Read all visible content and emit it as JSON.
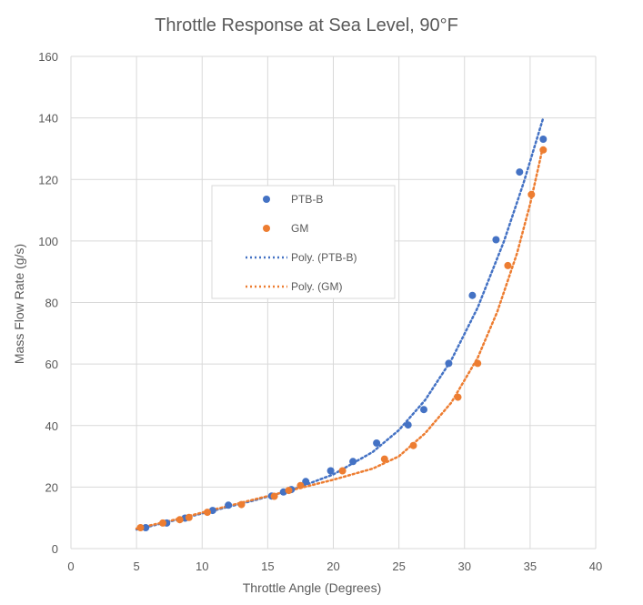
{
  "chart_data": {
    "type": "scatter",
    "title": "Throttle Response at Sea Level, 90°F",
    "xlabel": "Throttle Angle (Degrees)",
    "ylabel": "Mass Flow Rate (g/s)",
    "xlim": [
      0,
      40
    ],
    "ylim": [
      0,
      160
    ],
    "x_ticks": [
      "0",
      "5",
      "10",
      "15",
      "20",
      "25",
      "30",
      "35",
      "40"
    ],
    "y_ticks": [
      "0",
      "20",
      "40",
      "60",
      "80",
      "100",
      "120",
      "140",
      "160"
    ],
    "grid": true,
    "legend_position": "center-left",
    "series": [
      {
        "name": "PTB-B",
        "color": "#4472c4",
        "points": [
          [
            5.7,
            6.8
          ],
          [
            7.3,
            8.3
          ],
          [
            8.7,
            9.9
          ],
          [
            10.8,
            12.4
          ],
          [
            12.0,
            14.1
          ],
          [
            15.3,
            17.1
          ],
          [
            16.2,
            18.4
          ],
          [
            16.8,
            19.2
          ],
          [
            17.9,
            21.8
          ],
          [
            19.8,
            25.3
          ],
          [
            21.5,
            28.3
          ],
          [
            23.3,
            34.3
          ],
          [
            25.7,
            40.2
          ],
          [
            26.9,
            45.2
          ],
          [
            28.8,
            60.2
          ],
          [
            30.6,
            82.3
          ],
          [
            32.4,
            100.4
          ],
          [
            34.2,
            122.4
          ],
          [
            36.0,
            133.1
          ]
        ]
      },
      {
        "name": "GM",
        "color": "#ed7d31",
        "points": [
          [
            5.3,
            6.8
          ],
          [
            7.0,
            8.3
          ],
          [
            8.3,
            9.4
          ],
          [
            9.0,
            10.1
          ],
          [
            10.4,
            11.8
          ],
          [
            13.0,
            14.3
          ],
          [
            15.5,
            17.0
          ],
          [
            16.6,
            18.9
          ],
          [
            17.5,
            20.5
          ],
          [
            20.7,
            25.3
          ],
          [
            23.9,
            29.1
          ],
          [
            26.1,
            33.5
          ],
          [
            29.5,
            49.2
          ],
          [
            31.0,
            60.2
          ],
          [
            33.3,
            92.0
          ],
          [
            35.1,
            115.1
          ],
          [
            36.0,
            129.6
          ]
        ]
      }
    ],
    "trendlines": [
      {
        "name": "Poly. (PTB-B)",
        "color": "#4472c4",
        "points": [
          [
            5.0,
            6.2
          ],
          [
            8.0,
            9.3
          ],
          [
            11.0,
            12.5
          ],
          [
            14.0,
            15.7
          ],
          [
            17.0,
            19.3
          ],
          [
            20.0,
            24.1
          ],
          [
            23.0,
            31.4
          ],
          [
            25.0,
            38.5
          ],
          [
            27.0,
            48.3
          ],
          [
            29.0,
            61.3
          ],
          [
            31.0,
            78.3
          ],
          [
            33.0,
            99.8
          ],
          [
            34.5,
            118.9
          ],
          [
            36.0,
            140.0
          ]
        ]
      },
      {
        "name": "Poly. (GM)",
        "color": "#ed7d31",
        "points": [
          [
            5.0,
            6.5
          ],
          [
            8.0,
            9.5
          ],
          [
            11.0,
            12.8
          ],
          [
            14.0,
            16.0
          ],
          [
            17.0,
            19.2
          ],
          [
            20.0,
            22.4
          ],
          [
            23.0,
            26.0
          ],
          [
            25.0,
            30.0
          ],
          [
            27.0,
            37.5
          ],
          [
            29.0,
            47.5
          ],
          [
            31.0,
            62.0
          ],
          [
            32.5,
            77.0
          ],
          [
            34.0,
            96.0
          ],
          [
            35.0,
            112.0
          ],
          [
            36.0,
            131.0
          ]
        ]
      }
    ]
  }
}
